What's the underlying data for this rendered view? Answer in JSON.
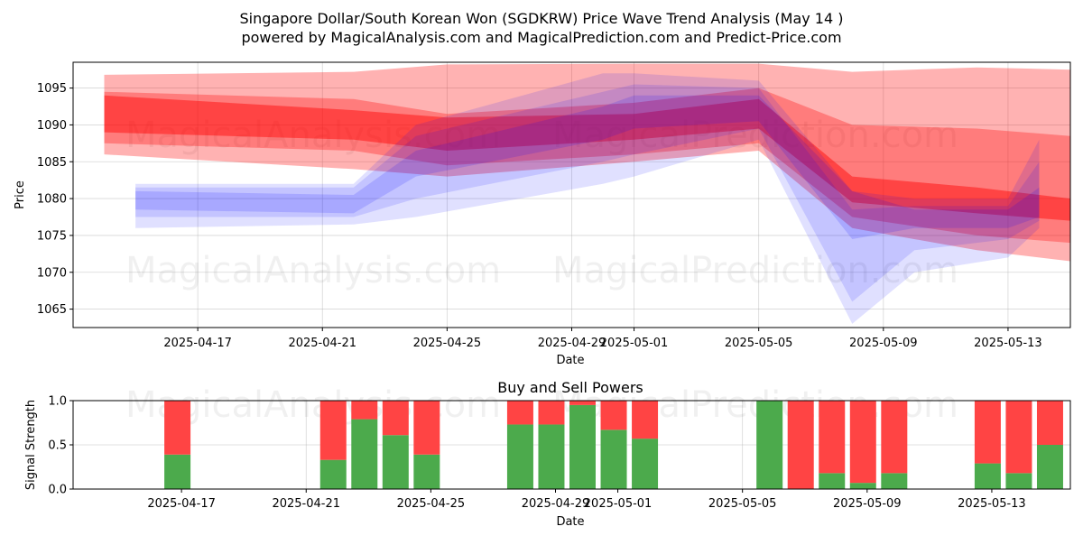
{
  "figure": {
    "title_line1": "Singapore Dollar/South Korean Won (SGDKRW) Price Wave Trend Analysis (May 14 )",
    "title_line2": "powered by MagicalAnalysis.com and MagicalPrediction.com and Predict-Price.com",
    "watermarks": [
      "MagicalAnalysis.com",
      "MagicalPrediction.com"
    ]
  },
  "chart_data": [
    {
      "type": "area",
      "title": "",
      "xlabel": "Date",
      "ylabel": "Price",
      "xlim": [
        "2025-04-13",
        "2025-05-15"
      ],
      "ylim": [
        1062.5,
        1098.5
      ],
      "x_ticks": [
        "2025-04-17",
        "2025-04-21",
        "2025-04-25",
        "2025-04-29",
        "2025-05-01",
        "2025-05-05",
        "2025-05-09",
        "2025-05-13"
      ],
      "y_ticks": [
        1065,
        1070,
        1075,
        1080,
        1085,
        1090,
        1095
      ],
      "grid": true,
      "colors": {
        "red_bands": "#ff0000",
        "blue_bands": "#0000ff"
      },
      "series": [
        {
          "color": "red",
          "x": [
            "2025-04-14",
            "2025-04-22",
            "2025-04-25",
            "2025-05-01",
            "2025-05-05",
            "2025-05-08",
            "2025-05-12",
            "2025-05-15"
          ],
          "upper": [
            1096.8,
            1097.2,
            1098.2,
            1098.3,
            1098.3,
            1097.2,
            1097.8,
            1097.5
          ],
          "lower": [
            1086.0,
            1084.0,
            1083.0,
            1085.0,
            1086.5,
            1076.0,
            1073.0,
            1071.5
          ]
        },
        {
          "color": "red",
          "x": [
            "2025-04-14",
            "2025-04-22",
            "2025-04-25",
            "2025-05-01",
            "2025-05-05",
            "2025-05-08",
            "2025-05-12",
            "2025-05-15"
          ],
          "upper": [
            1094.5,
            1093.5,
            1091.5,
            1093.0,
            1095.0,
            1090.0,
            1089.5,
            1088.5
          ],
          "lower": [
            1087.5,
            1086.5,
            1084.5,
            1086.0,
            1087.5,
            1077.5,
            1075.0,
            1074.0
          ]
        },
        {
          "color": "red",
          "x": [
            "2025-04-14",
            "2025-04-22",
            "2025-04-25",
            "2025-05-01",
            "2025-05-05",
            "2025-05-08",
            "2025-05-12",
            "2025-05-15"
          ],
          "upper": [
            1094.0,
            1092.0,
            1091.0,
            1091.5,
            1093.5,
            1083.0,
            1081.5,
            1080.0
          ],
          "lower": [
            1089.0,
            1088.0,
            1086.5,
            1088.0,
            1089.5,
            1079.5,
            1078.0,
            1077.0
          ]
        },
        {
          "color": "blue",
          "x": [
            "2025-04-15",
            "2025-04-22",
            "2025-04-24",
            "2025-04-30",
            "2025-05-01",
            "2025-05-05",
            "2025-05-08",
            "2025-05-10",
            "2025-05-13",
            "2025-05-14"
          ],
          "upper": [
            1082.0,
            1082.0,
            1090.0,
            1097.0,
            1097.0,
            1096.0,
            1081.0,
            1080.0,
            1080.0,
            1088.0
          ],
          "lower": [
            1076.0,
            1076.5,
            1077.5,
            1082.0,
            1083.0,
            1088.0,
            1063.0,
            1070.0,
            1072.0,
            1076.0
          ]
        },
        {
          "color": "blue",
          "x": [
            "2025-04-15",
            "2025-04-22",
            "2025-04-24",
            "2025-04-30",
            "2025-05-01",
            "2025-05-05",
            "2025-05-08",
            "2025-05-10",
            "2025-05-13",
            "2025-05-14"
          ],
          "upper": [
            1081.5,
            1081.5,
            1088.5,
            1094.5,
            1095.5,
            1095.0,
            1078.5,
            1079.0,
            1079.0,
            1085.0
          ],
          "lower": [
            1077.5,
            1077.5,
            1080.0,
            1085.0,
            1086.0,
            1089.5,
            1066.0,
            1073.0,
            1074.5,
            1077.0
          ]
        },
        {
          "color": "blue",
          "x": [
            "2025-04-15",
            "2025-04-22",
            "2025-04-24",
            "2025-04-30",
            "2025-05-01",
            "2025-05-05",
            "2025-05-08",
            "2025-05-10",
            "2025-05-13",
            "2025-05-14"
          ],
          "upper": [
            1081.0,
            1080.5,
            1086.5,
            1092.5,
            1094.0,
            1094.0,
            1081.0,
            1078.5,
            1078.5,
            1081.5
          ],
          "lower": [
            1078.5,
            1078.0,
            1083.0,
            1088.0,
            1089.5,
            1090.5,
            1074.5,
            1076.0,
            1076.0,
            1077.5
          ]
        }
      ]
    },
    {
      "type": "bar",
      "title": "Buy and Sell Powers",
      "xlabel": "Date",
      "ylabel": "Signal Strength",
      "ylim": [
        0,
        1
      ],
      "y_ticks": [
        "0.0",
        "0.5",
        "1.0"
      ],
      "x_ticks": [
        "2025-04-17",
        "2025-04-21",
        "2025-04-25",
        "2025-04-29",
        "2025-05-01",
        "2025-05-05",
        "2025-05-09",
        "2025-05-13"
      ],
      "grid": true,
      "colors": {
        "buy": "#4caa4c",
        "sell": "#ff4444"
      },
      "categories": [
        "2025-04-16",
        "2025-04-21",
        "2025-04-22",
        "2025-04-23",
        "2025-04-24",
        "2025-04-27",
        "2025-04-28",
        "2025-04-29",
        "2025-04-30",
        "2025-05-01",
        "2025-05-05",
        "2025-05-06",
        "2025-05-07",
        "2025-05-08",
        "2025-05-09",
        "2025-05-12",
        "2025-05-13",
        "2025-05-14"
      ],
      "series": [
        {
          "values": [
            0.39,
            0.33,
            0.79,
            0.61,
            0.39,
            0.73,
            0.73,
            0.95,
            0.67,
            0.57,
            1.0,
            0.0,
            0.18,
            0.07,
            0.18,
            0.29,
            0.18,
            0.5
          ]
        },
        {
          "values": [
            0.61,
            0.67,
            0.21,
            0.39,
            0.61,
            0.27,
            0.27,
            0.05,
            0.33,
            0.43,
            0.0,
            1.0,
            0.82,
            0.93,
            0.82,
            0.71,
            0.82,
            0.5
          ]
        }
      ]
    }
  ]
}
